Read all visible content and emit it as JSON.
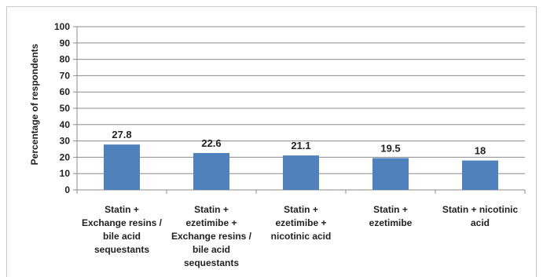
{
  "chart_data": {
    "type": "bar",
    "ylabel": "Percentage of respondents",
    "xlabel": "",
    "ylim": [
      0,
      100
    ],
    "yticks": [
      0,
      10,
      20,
      30,
      40,
      50,
      60,
      70,
      80,
      90,
      100
    ],
    "grid": true,
    "legend": "none",
    "bar_color": "#4f81bd",
    "categories": [
      [
        "Statin +",
        "Exchange resins /",
        "bile acid",
        "sequestants"
      ],
      [
        "Statin +",
        "ezetimibe +",
        "Exchange resins /",
        "bile acid",
        "sequestants"
      ],
      [
        "Statin +",
        "ezetimibe +",
        "nicotinic acid"
      ],
      [
        "Statin +",
        "ezetimibe"
      ],
      [
        "Statin + nicotinic",
        "acid"
      ]
    ],
    "values": [
      27.8,
      22.6,
      21.1,
      19.5,
      18
    ],
    "value_labels": [
      "27.8",
      "22.6",
      "21.1",
      "19.5",
      "18"
    ]
  }
}
